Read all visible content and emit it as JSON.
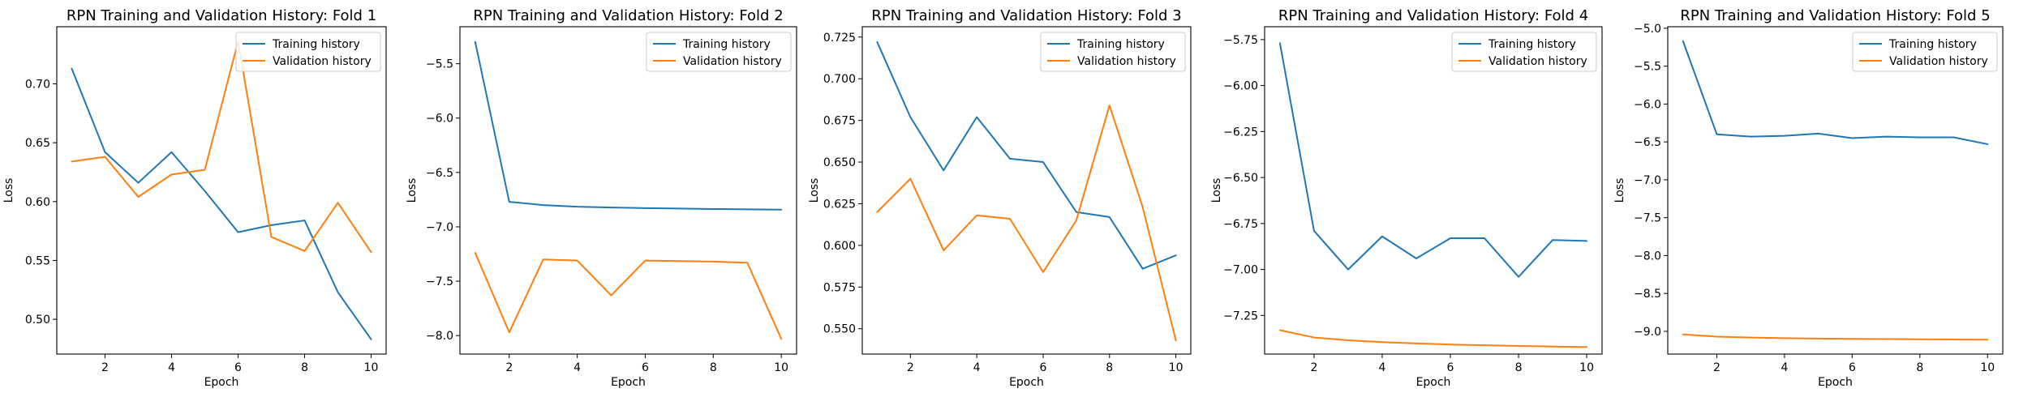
{
  "colors": {
    "training": "#1f77b4",
    "validation": "#ff7f0e"
  },
  "chart_data": [
    {
      "type": "line",
      "title": "RPN Training and Validation History: Fold 1",
      "xlabel": "Epoch",
      "ylabel": "Loss",
      "x": [
        1,
        2,
        3,
        4,
        5,
        6,
        7,
        8,
        9,
        10
      ],
      "xlim": [
        0.55,
        10.45
      ],
      "xticks": [
        2,
        4,
        6,
        8,
        10
      ],
      "ylim": [
        0.4705,
        0.7485
      ],
      "yticks": [
        0.5,
        0.55,
        0.6,
        0.65,
        0.7
      ],
      "ytick_labels": [
        "0.50",
        "0.55",
        "0.60",
        "0.65",
        "0.70"
      ],
      "legend": "top-right",
      "grid": false,
      "series": [
        {
          "name": "Training history",
          "values": [
            0.713,
            0.642,
            0.616,
            0.642,
            0.609,
            0.574,
            0.58,
            0.584,
            0.523,
            0.483
          ]
        },
        {
          "name": "Validation history",
          "values": [
            0.634,
            0.638,
            0.604,
            0.623,
            0.627,
            0.736,
            0.57,
            0.558,
            0.599,
            0.557
          ]
        }
      ]
    },
    {
      "type": "line",
      "title": "RPN Training and Validation History: Fold 2",
      "xlabel": "Epoch",
      "ylabel": "Loss",
      "x": [
        1,
        2,
        3,
        4,
        5,
        6,
        7,
        8,
        9,
        10
      ],
      "xlim": [
        0.55,
        10.45
      ],
      "xticks": [
        2,
        4,
        6,
        8,
        10
      ],
      "ylim": [
        -8.17,
        -5.16
      ],
      "yticks": [
        -8.0,
        -7.5,
        -7.0,
        -6.5,
        -6.0,
        -5.5
      ],
      "ytick_labels": [
        "−8.0",
        "−7.5",
        "−7.0",
        "−6.5",
        "−6.0",
        "−5.5"
      ],
      "legend": "top-right",
      "grid": false,
      "series": [
        {
          "name": "Training history",
          "values": [
            -5.3,
            -6.77,
            -6.8,
            -6.815,
            -6.822,
            -6.828,
            -6.832,
            -6.836,
            -6.839,
            -6.842
          ]
        },
        {
          "name": "Validation history",
          "values": [
            -7.24,
            -7.97,
            -7.3,
            -7.31,
            -7.63,
            -7.31,
            -7.315,
            -7.32,
            -7.33,
            -8.03
          ]
        }
      ]
    },
    {
      "type": "line",
      "title": "RPN Training and Validation History: Fold 3",
      "xlabel": "Epoch",
      "ylabel": "Loss",
      "x": [
        1,
        2,
        3,
        4,
        5,
        6,
        7,
        8,
        9,
        10
      ],
      "xlim": [
        0.55,
        10.45
      ],
      "xticks": [
        2,
        4,
        6,
        8,
        10
      ],
      "ylim": [
        0.5348,
        0.7312
      ],
      "yticks": [
        0.55,
        0.575,
        0.6,
        0.625,
        0.65,
        0.675,
        0.7,
        0.725
      ],
      "ytick_labels": [
        "0.550",
        "0.575",
        "0.600",
        "0.625",
        "0.650",
        "0.675",
        "0.700",
        "0.725"
      ],
      "legend": "top-right",
      "grid": false,
      "series": [
        {
          "name": "Training history",
          "values": [
            0.722,
            0.677,
            0.645,
            0.677,
            0.652,
            0.65,
            0.62,
            0.617,
            0.586,
            0.594
          ]
        },
        {
          "name": "Validation history",
          "values": [
            0.62,
            0.64,
            0.597,
            0.618,
            0.616,
            0.584,
            0.615,
            0.684,
            0.623,
            0.543
          ]
        }
      ]
    },
    {
      "type": "line",
      "title": "RPN Training and Validation History: Fold 4",
      "xlabel": "Epoch",
      "ylabel": "Loss",
      "x": [
        1,
        2,
        3,
        4,
        5,
        6,
        7,
        8,
        9,
        10
      ],
      "xlim": [
        0.55,
        10.45
      ],
      "xticks": [
        2,
        4,
        6,
        8,
        10
      ],
      "ylim": [
        -7.46,
        -5.68
      ],
      "yticks": [
        -7.25,
        -7.0,
        -6.75,
        -6.5,
        -6.25,
        -6.0,
        -5.75
      ],
      "ytick_labels": [
        "−7.25",
        "−7.00",
        "−6.75",
        "−6.50",
        "−6.25",
        "−6.00",
        "−5.75"
      ],
      "legend": "top-right",
      "grid": false,
      "series": [
        {
          "name": "Training history",
          "values": [
            -5.77,
            -6.79,
            -7.0,
            -6.82,
            -6.94,
            -6.83,
            -6.83,
            -7.04,
            -6.84,
            -6.845
          ]
        },
        {
          "name": "Validation history",
          "values": [
            -7.33,
            -7.37,
            -7.385,
            -7.395,
            -7.402,
            -7.408,
            -7.412,
            -7.416,
            -7.419,
            -7.422
          ]
        }
      ]
    },
    {
      "type": "line",
      "title": "RPN Training and Validation History: Fold 5",
      "xlabel": "Epoch",
      "ylabel": "Loss",
      "x": [
        1,
        2,
        3,
        4,
        5,
        6,
        7,
        8,
        9,
        10
      ],
      "xlim": [
        0.55,
        10.45
      ],
      "xticks": [
        2,
        4,
        6,
        8,
        10
      ],
      "ylim": [
        -9.3,
        -4.98
      ],
      "yticks": [
        -9.0,
        -8.5,
        -8.0,
        -7.5,
        -7.0,
        -6.5,
        -6.0,
        -5.5,
        -5.0
      ],
      "ytick_labels": [
        "−9.0",
        "−8.5",
        "−8.0",
        "−7.5",
        "−7.0",
        "−6.5",
        "−6.0",
        "−5.5",
        "−5.0"
      ],
      "legend": "top-right",
      "grid": false,
      "series": [
        {
          "name": "Training history",
          "values": [
            -5.17,
            -6.4,
            -6.43,
            -6.42,
            -6.39,
            -6.45,
            -6.43,
            -6.44,
            -6.44,
            -6.53
          ]
        },
        {
          "name": "Validation history",
          "values": [
            -9.04,
            -9.07,
            -9.082,
            -9.09,
            -9.095,
            -9.099,
            -9.102,
            -9.105,
            -9.108,
            -9.11
          ]
        }
      ]
    }
  ]
}
